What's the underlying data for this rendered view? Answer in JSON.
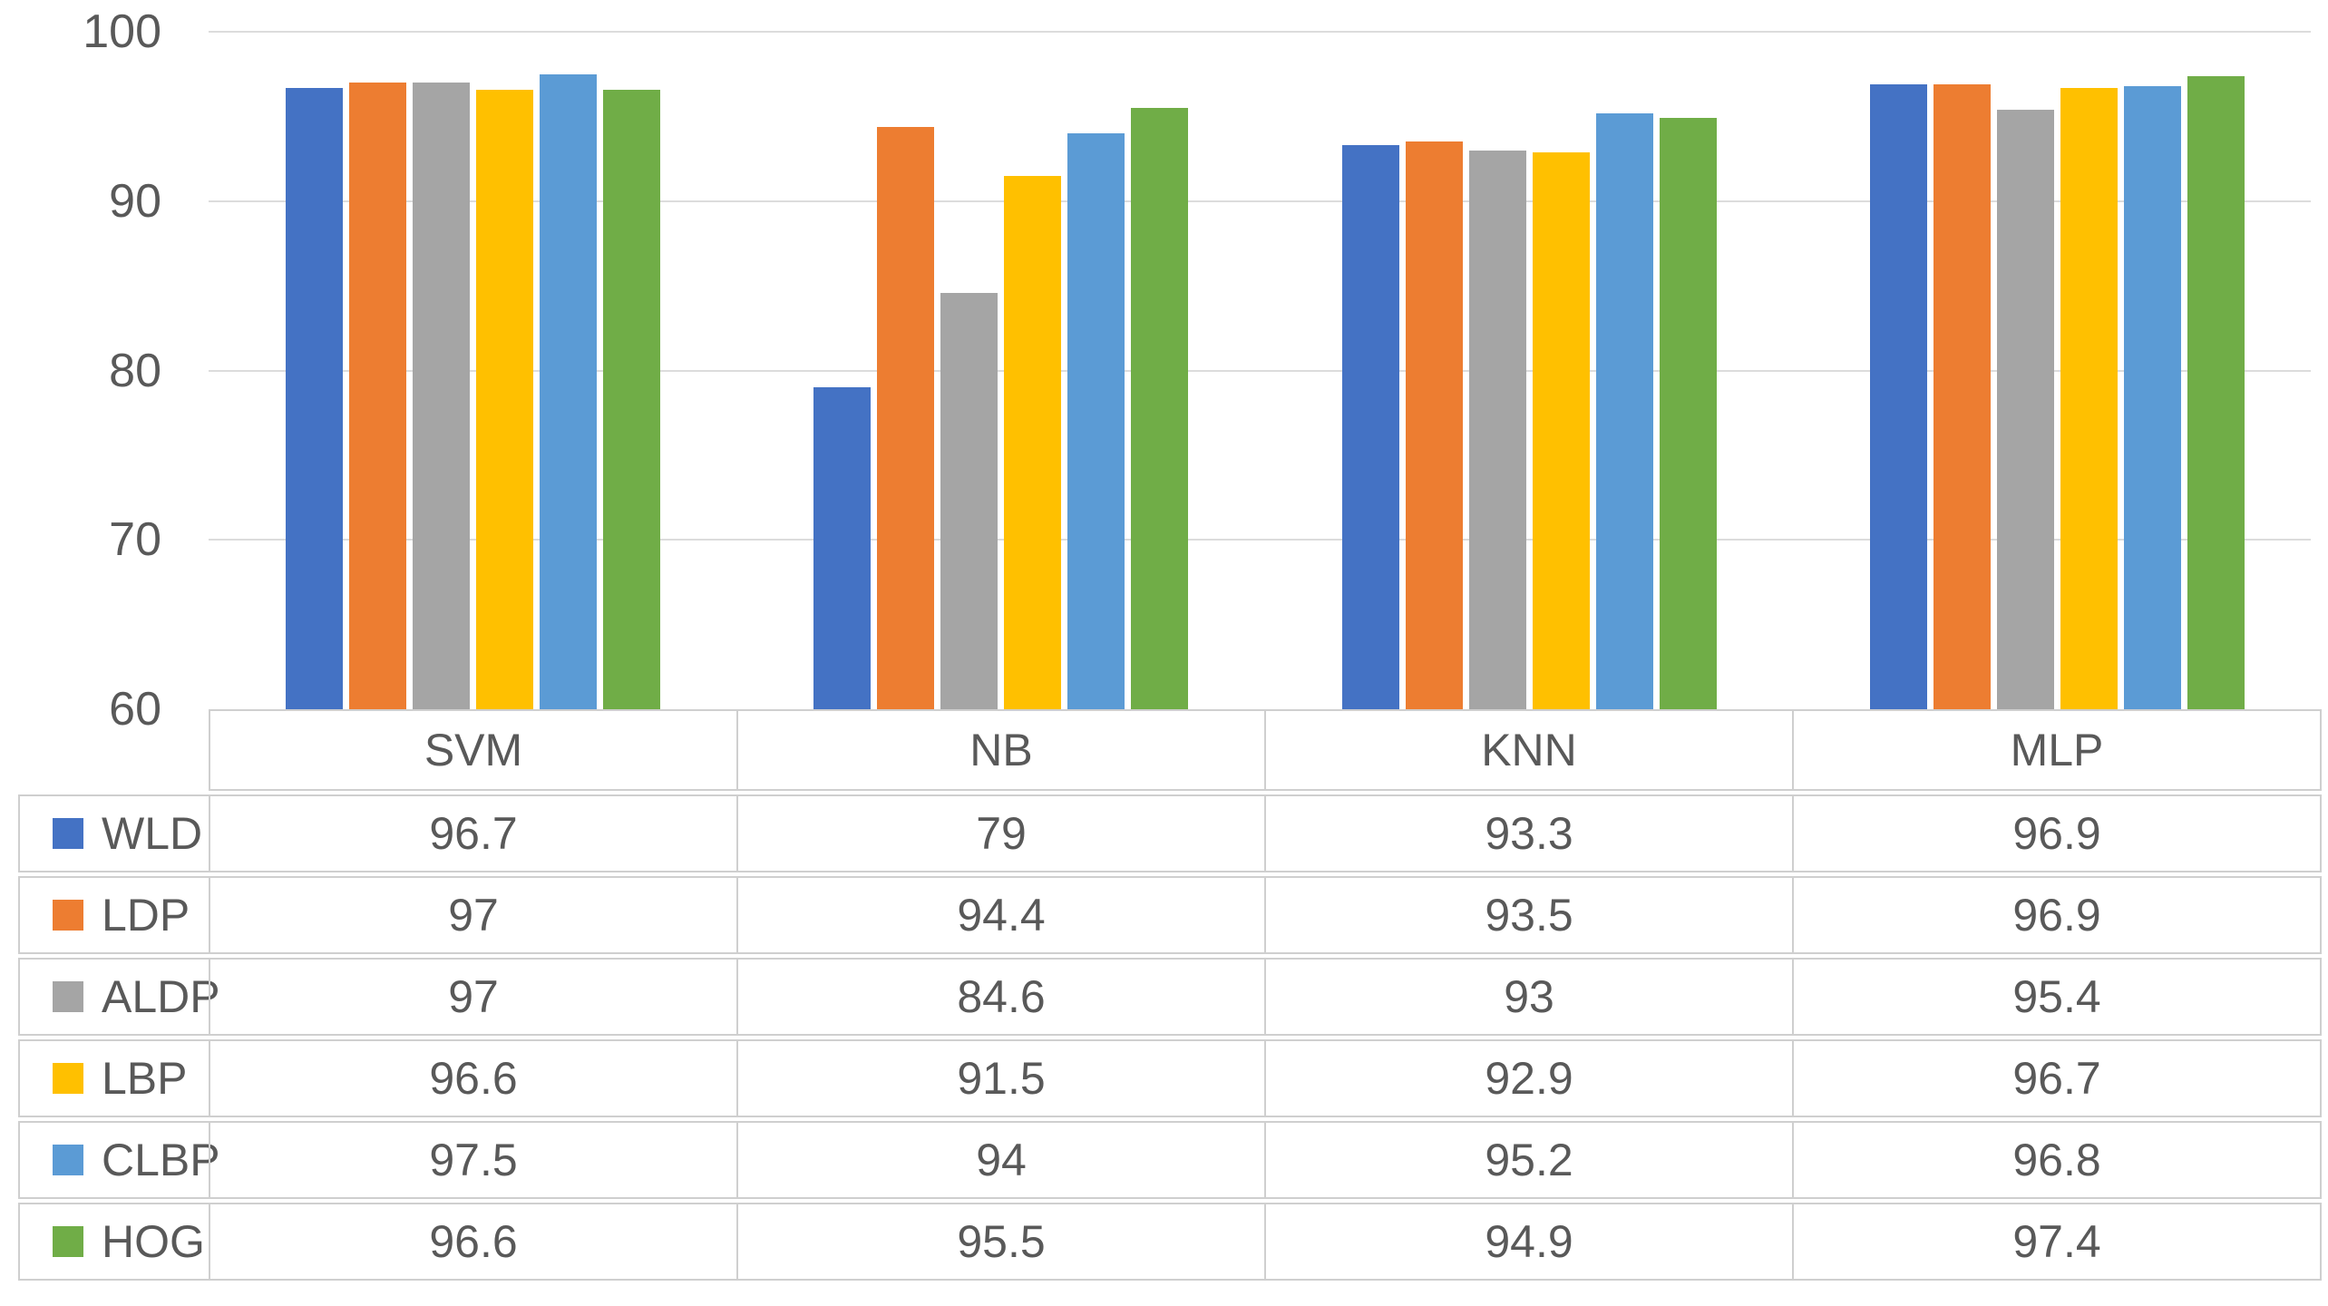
{
  "chart_data": {
    "type": "bar",
    "title": "",
    "xlabel": "",
    "ylabel": "",
    "categories": [
      "SVM",
      "NB",
      "KNN",
      "MLP"
    ],
    "series": [
      {
        "name": "WLD",
        "color": "#4472C4",
        "values": [
          96.7,
          79,
          93.3,
          96.9
        ]
      },
      {
        "name": "LDP",
        "color": "#ED7D31",
        "values": [
          97,
          94.4,
          93.5,
          96.9
        ]
      },
      {
        "name": "ALDP",
        "color": "#A5A5A5",
        "values": [
          97,
          84.6,
          93,
          95.4
        ]
      },
      {
        "name": "LBP",
        "color": "#FFC000",
        "values": [
          96.6,
          91.5,
          92.9,
          96.7
        ]
      },
      {
        "name": "CLBP",
        "color": "#5B9BD5",
        "values": [
          97.5,
          94,
          95.2,
          96.8
        ]
      },
      {
        "name": "HOG",
        "color": "#70AD47",
        "values": [
          96.6,
          95.5,
          94.9,
          97.4
        ]
      }
    ],
    "ylim": [
      60,
      100
    ],
    "yticks": [
      100,
      90,
      80,
      70,
      60
    ],
    "grid": true,
    "legend_position": "table-left",
    "colors": {
      "text": "#595959",
      "gridline": "#dcdcdc",
      "table_border": "#cfcfcf",
      "background": "#ffffff"
    }
  }
}
